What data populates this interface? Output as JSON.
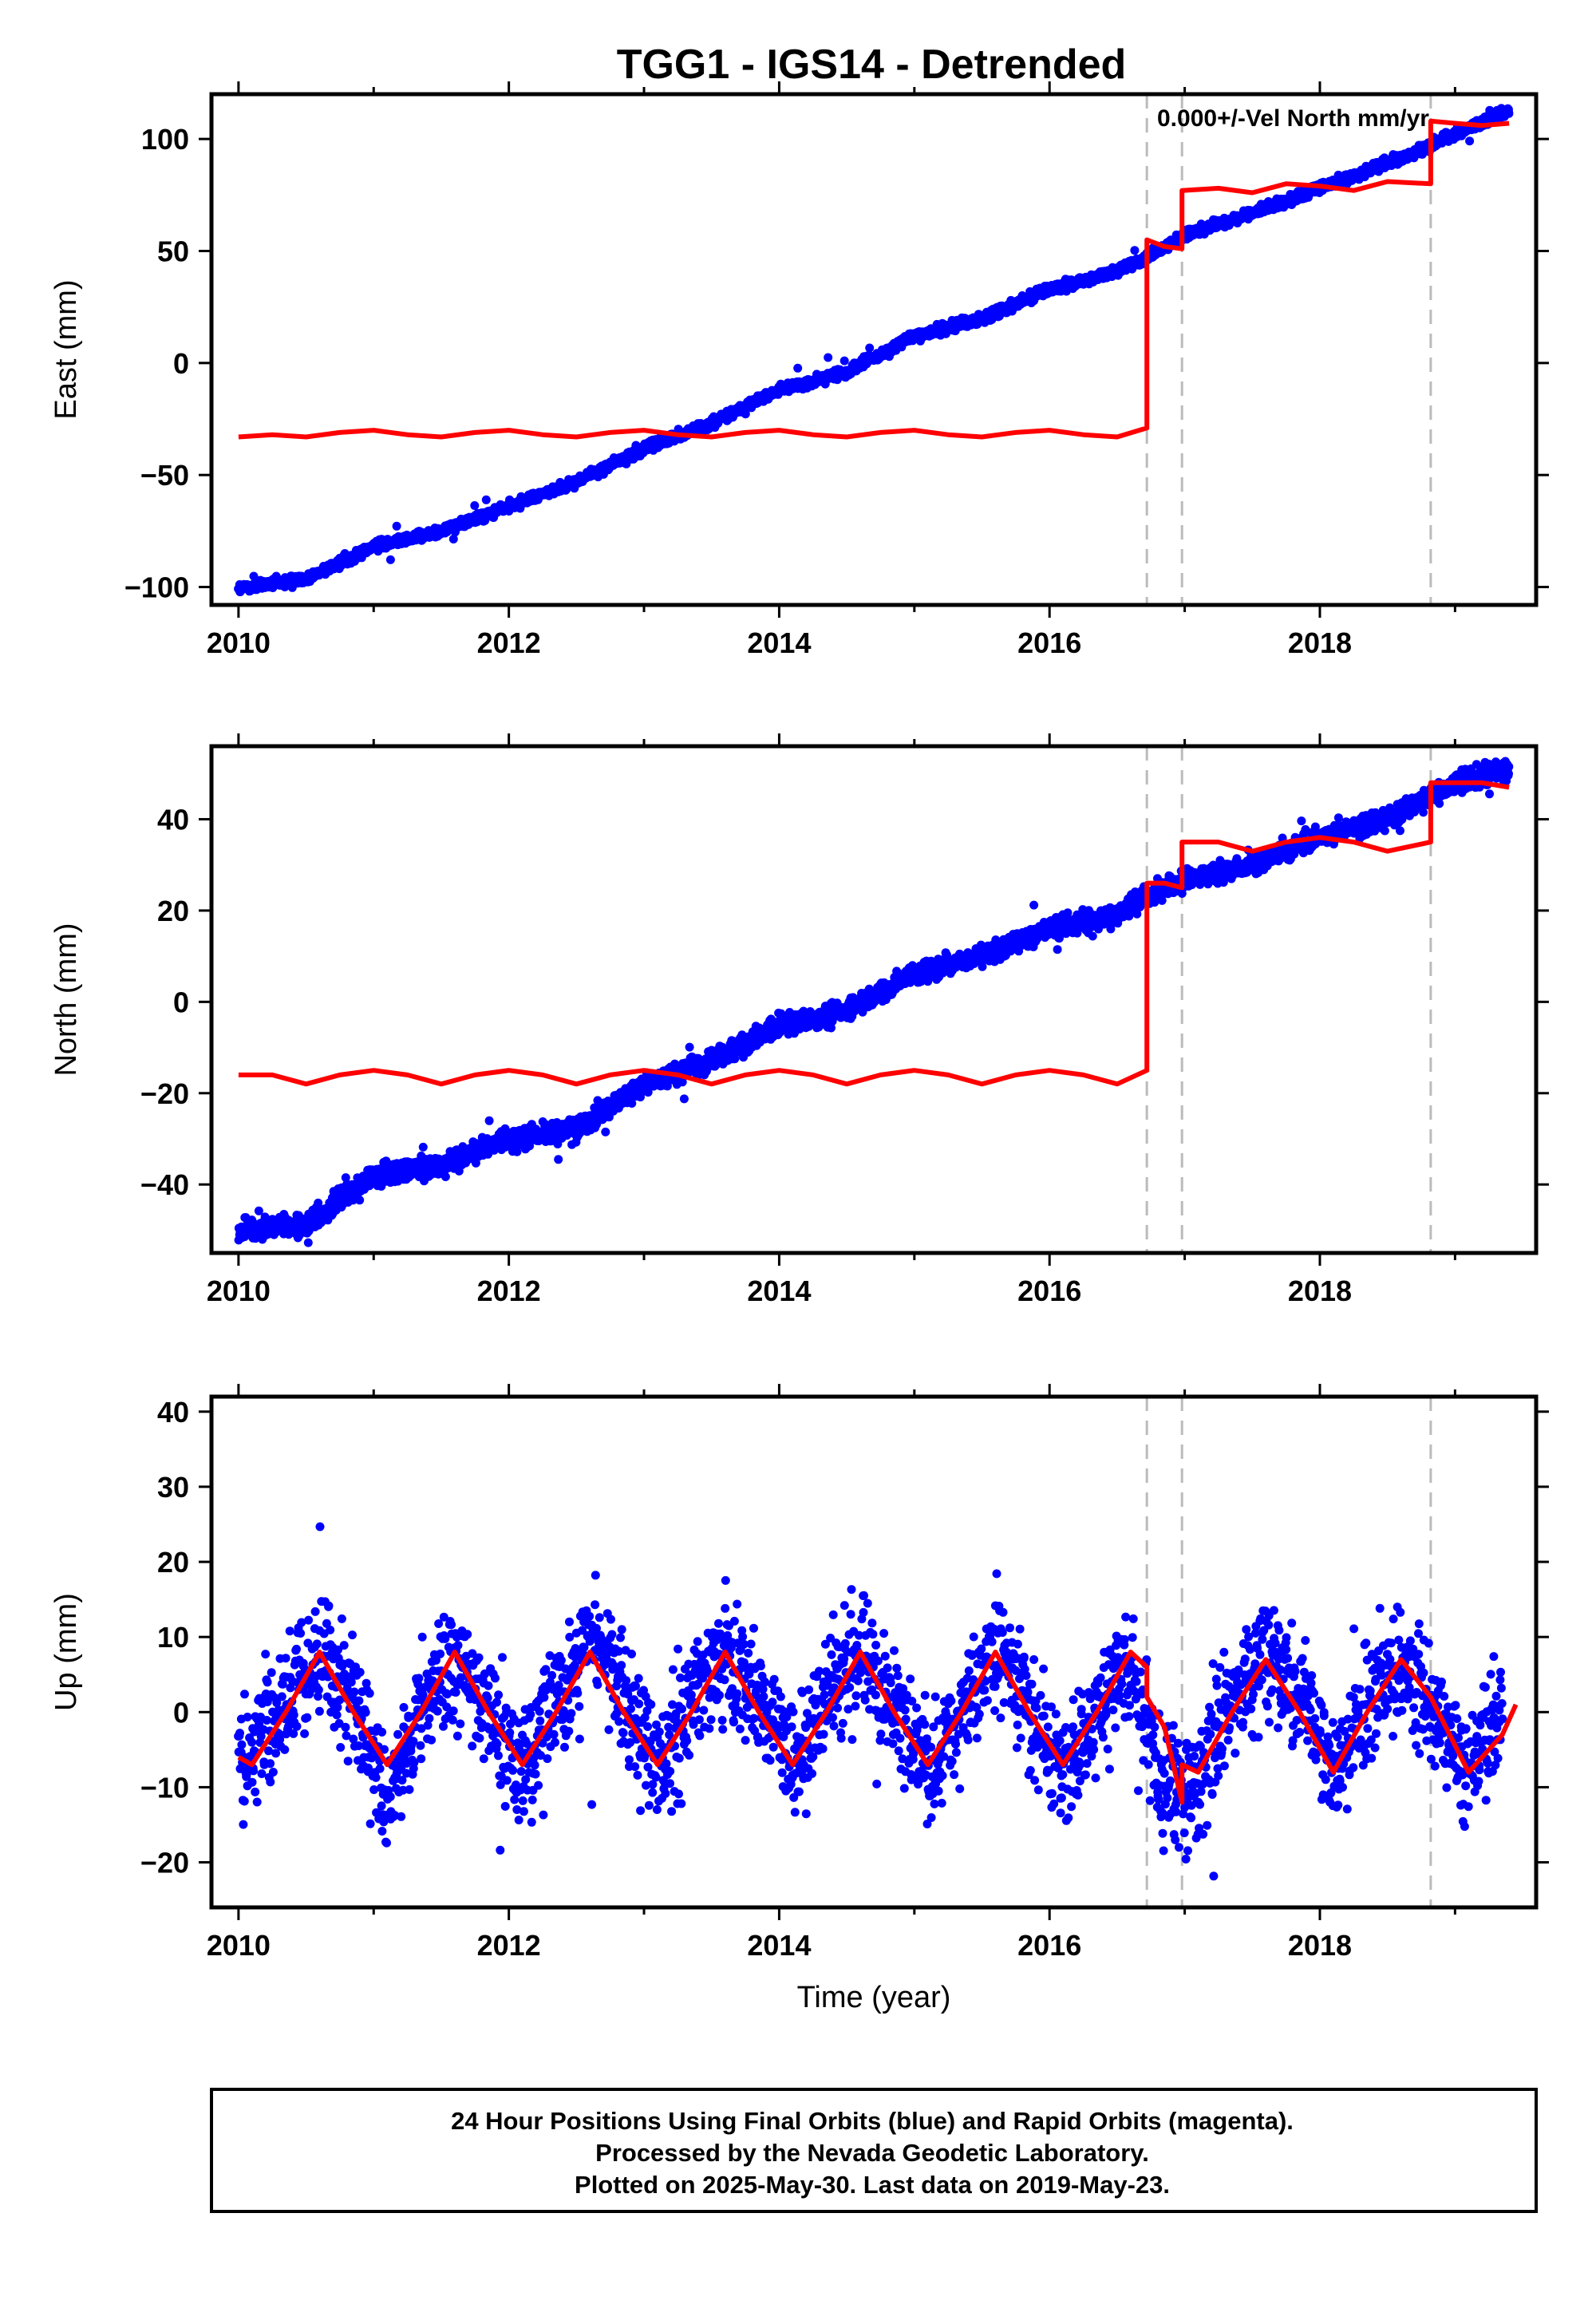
{
  "title": "TGG1 - IGS14 - Detrended",
  "colors": {
    "points": "#0000ff",
    "model": "#ff0000",
    "offset_lines": "#bbbbbb",
    "frame": "#000000"
  },
  "footer": {
    "line1": "24 Hour Positions Using Final Orbits (blue) and Rapid Orbits (magenta).",
    "line2": "Processed by the Nevada Geodetic Laboratory.",
    "line3": "Plotted on 2025-May-30. Last data on 2019-May-23."
  },
  "chart_data": [
    {
      "type": "scatter",
      "panel": "east",
      "ylabel": "East (mm)",
      "xlabel": "",
      "annotation": "0.000+/-Vel North mm/yr",
      "xlim": [
        2009.8,
        2019.6
      ],
      "ylim": [
        -108,
        120
      ],
      "xticks": [
        2010,
        2012,
        2014,
        2016,
        2018
      ],
      "yticks": [
        -100,
        -50,
        0,
        50,
        100
      ],
      "offset_epochs": [
        2016.72,
        2016.98,
        2018.82
      ],
      "series": [
        {
          "kind": "points",
          "x": [
            2010.0,
            2010.5,
            2011.0,
            2011.5,
            2012.0,
            2012.5,
            2013.0,
            2013.5,
            2014.0,
            2014.5,
            2015.0,
            2015.5,
            2016.0,
            2016.5,
            2016.7,
            2017.0,
            2017.5,
            2018.0,
            2018.5,
            2019.0,
            2019.4
          ],
          "y": [
            -101,
            -96,
            -82,
            -75,
            -64,
            -53,
            -38,
            -27,
            -12,
            -4,
            12,
            20,
            33,
            41,
            46,
            57,
            67,
            78,
            89,
            102,
            113
          ]
        },
        {
          "kind": "model",
          "x": [
            2010.0,
            2010.25,
            2010.5,
            2010.75,
            2011.0,
            2011.25,
            2011.5,
            2011.75,
            2012.0,
            2012.25,
            2012.5,
            2012.75,
            2013.0,
            2013.25,
            2013.5,
            2013.75,
            2014.0,
            2014.25,
            2014.5,
            2014.75,
            2015.0,
            2015.25,
            2015.5,
            2015.75,
            2016.0,
            2016.25,
            2016.5,
            2016.72,
            2016.72,
            2016.85,
            2016.98,
            2016.98,
            2017.25,
            2017.5,
            2017.75,
            2018.0,
            2018.25,
            2018.5,
            2018.82,
            2018.82,
            2019.0,
            2019.2,
            2019.4
          ],
          "y": [
            -33,
            -32,
            -33,
            -31,
            -30,
            -32,
            -33,
            -31,
            -30,
            -32,
            -33,
            -31,
            -30,
            -32,
            -33,
            -31,
            -30,
            -32,
            -33,
            -31,
            -30,
            -32,
            -33,
            -31,
            -30,
            -32,
            -33,
            -29,
            55,
            52,
            51,
            77,
            78,
            76,
            80,
            79,
            77,
            81,
            80,
            108,
            107,
            106,
            107
          ]
        }
      ]
    },
    {
      "type": "scatter",
      "panel": "north",
      "ylabel": "North (mm)",
      "xlabel": "",
      "xlim": [
        2009.8,
        2019.6
      ],
      "ylim": [
        -55,
        56
      ],
      "xticks": [
        2010,
        2012,
        2014,
        2016,
        2018
      ],
      "yticks": [
        -40,
        -20,
        0,
        20,
        40
      ],
      "offset_epochs": [
        2016.72,
        2016.98,
        2018.82
      ],
      "series": [
        {
          "kind": "points",
          "x": [
            2010.0,
            2010.5,
            2011.0,
            2011.5,
            2012.0,
            2012.5,
            2013.0,
            2013.5,
            2014.0,
            2014.5,
            2015.0,
            2015.5,
            2016.0,
            2016.5,
            2016.7,
            2017.0,
            2017.5,
            2018.0,
            2018.5,
            2019.0,
            2019.4
          ],
          "y": [
            -50,
            -49,
            -38,
            -36,
            -30,
            -28,
            -18,
            -13,
            -5,
            -2,
            6,
            10,
            16,
            19,
            23,
            27,
            30,
            36,
            40,
            48,
            51
          ]
        },
        {
          "kind": "model",
          "x": [
            2010.0,
            2010.25,
            2010.5,
            2010.75,
            2011.0,
            2011.25,
            2011.5,
            2011.75,
            2012.0,
            2012.25,
            2012.5,
            2012.75,
            2013.0,
            2013.25,
            2013.5,
            2013.75,
            2014.0,
            2014.25,
            2014.5,
            2014.75,
            2015.0,
            2015.25,
            2015.5,
            2015.75,
            2016.0,
            2016.25,
            2016.5,
            2016.72,
            2016.72,
            2016.85,
            2016.98,
            2016.98,
            2017.25,
            2017.5,
            2017.75,
            2018.0,
            2018.25,
            2018.5,
            2018.82,
            2018.82,
            2019.0,
            2019.2,
            2019.4
          ],
          "y": [
            -16,
            -16,
            -18,
            -16,
            -15,
            -16,
            -18,
            -16,
            -15,
            -16,
            -18,
            -16,
            -15,
            -16,
            -18,
            -16,
            -15,
            -16,
            -18,
            -16,
            -15,
            -16,
            -18,
            -16,
            -15,
            -16,
            -18,
            -15,
            26,
            26,
            25,
            35,
            35,
            33,
            35,
            36,
            35,
            33,
            35,
            48,
            48,
            48,
            47
          ]
        }
      ]
    },
    {
      "type": "scatter",
      "panel": "up",
      "ylabel": "Up (mm)",
      "xlabel": "Time (year)",
      "xlim": [
        2009.8,
        2019.6
      ],
      "ylim": [
        -26,
        42
      ],
      "xticks": [
        2010,
        2012,
        2014,
        2016,
        2018
      ],
      "yticks": [
        -20,
        -10,
        0,
        10,
        20,
        30,
        40
      ],
      "offset_epochs": [
        2016.72,
        2016.98,
        2018.82
      ],
      "series": [
        {
          "kind": "points",
          "x": [
            2010.0,
            2010.1,
            2010.35,
            2010.6,
            2010.85,
            2011.1,
            2011.35,
            2011.6,
            2011.85,
            2012.1,
            2012.35,
            2012.6,
            2012.85,
            2013.1,
            2013.35,
            2013.6,
            2013.85,
            2014.1,
            2014.35,
            2014.6,
            2014.85,
            2015.1,
            2015.35,
            2015.6,
            2015.85,
            2016.1,
            2016.35,
            2016.6,
            2016.85,
            2017.05,
            2017.35,
            2017.6,
            2017.85,
            2018.1,
            2018.35,
            2018.6,
            2018.85,
            2019.1,
            2019.35
          ],
          "y": [
            -5,
            -7,
            2,
            8,
            1,
            -12,
            1,
            7,
            0,
            -8,
            2,
            9,
            2,
            -8,
            1,
            7,
            1,
            -7,
            2,
            8,
            1,
            -8,
            0,
            9,
            0,
            -8,
            0,
            6,
            -10,
            -11,
            1,
            8,
            2,
            -8,
            0,
            6,
            0,
            -9,
            1
          ]
        },
        {
          "kind": "model",
          "x": [
            2010.0,
            2010.1,
            2010.35,
            2010.6,
            2010.85,
            2011.1,
            2011.35,
            2011.6,
            2011.85,
            2012.1,
            2012.35,
            2012.6,
            2012.85,
            2013.1,
            2013.35,
            2013.6,
            2013.85,
            2014.1,
            2014.35,
            2014.6,
            2014.85,
            2015.1,
            2015.35,
            2015.6,
            2015.85,
            2016.1,
            2016.35,
            2016.6,
            2016.72,
            2016.72,
            2016.85,
            2016.98,
            2016.98,
            2017.1,
            2017.35,
            2017.6,
            2017.85,
            2018.1,
            2018.35,
            2018.6,
            2018.82,
            2018.82,
            2019.1,
            2019.35,
            2019.45
          ],
          "y": [
            -6,
            -7,
            0,
            8,
            0,
            -7,
            0,
            8,
            0,
            -7,
            0,
            8,
            0,
            -7,
            0,
            8,
            0,
            -7,
            0,
            8,
            0,
            -7,
            0,
            8,
            0,
            -7,
            0,
            8,
            6,
            2,
            -2,
            -12,
            -7,
            -8,
            0,
            7,
            0,
            -8,
            0,
            7,
            2,
            2,
            -8,
            -3,
            1
          ]
        }
      ]
    }
  ]
}
